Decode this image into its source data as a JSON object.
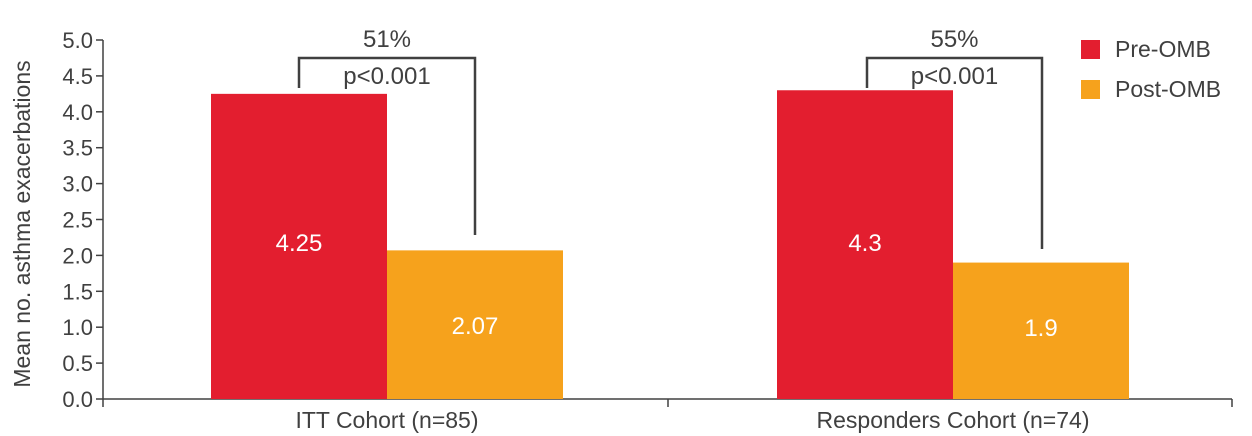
{
  "chart_data": {
    "type": "bar",
    "title": "",
    "xlabel": "",
    "ylabel": "Mean no. asthma exacerbations",
    "ylim": [
      0,
      5.0
    ],
    "yticks": [
      "0.0",
      "0.5",
      "1.0",
      "1.5",
      "2.0",
      "2.5",
      "3.0",
      "3.5",
      "4.0",
      "4.5",
      "5.0"
    ],
    "categories": [
      "ITT Cohort (n=85)",
      "Responders Cohort (n=74)"
    ],
    "series": [
      {
        "name": "Pre-OMB",
        "values": [
          4.25,
          4.3
        ],
        "labels": [
          "4.25",
          "4.3"
        ],
        "color": "#e31e2f"
      },
      {
        "name": "Post-OMB",
        "values": [
          2.07,
          1.9
        ],
        "labels": [
          "2.07",
          "1.9"
        ],
        "color": "#f6a21c"
      }
    ],
    "annotations": [
      {
        "category_index": 0,
        "percent": "51%",
        "p_value": "p<0.001"
      },
      {
        "category_index": 1,
        "percent": "55%",
        "p_value": "p<0.001"
      }
    ],
    "legend_position": "top-right",
    "grid": false
  }
}
